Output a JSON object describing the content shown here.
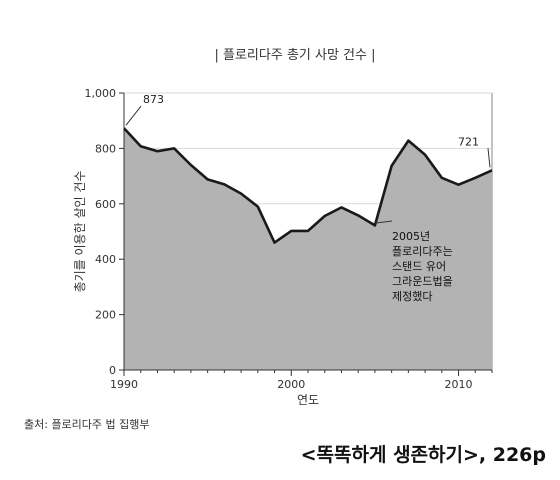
{
  "chart_data": {
    "type": "area",
    "title": "| 플로리다주 총기 사망 건수 |",
    "xlabel": "연도",
    "ylabel": "총기를 이용한 살인 건수",
    "xlim": [
      1990,
      2012
    ],
    "ylim": [
      0,
      1000
    ],
    "x_ticks": [
      "1990",
      "2000",
      "2010"
    ],
    "y_ticks": [
      "0",
      "200",
      "400",
      "600",
      "800",
      "1,000"
    ],
    "grid": "horizontal",
    "x": [
      1990,
      1991,
      1992,
      1993,
      1994,
      1995,
      1996,
      1997,
      1998,
      1999,
      2000,
      2001,
      2002,
      2003,
      2004,
      2005,
      2006,
      2007,
      2008,
      2009,
      2010,
      2011,
      2012
    ],
    "values": [
      873,
      808,
      790,
      800,
      740,
      688,
      670,
      637,
      590,
      460,
      502,
      502,
      556,
      587,
      558,
      522,
      737,
      828,
      777,
      694,
      669,
      694,
      721
    ],
    "point_labels": [
      {
        "x": 1990,
        "text": "873"
      },
      {
        "x": 2012,
        "text": "721"
      }
    ],
    "annotation": {
      "x": 2005,
      "lines": [
        "2005년",
        "플로리다주는",
        "스탠드 유어",
        "그라운드법을",
        "제정했다"
      ]
    },
    "colors": {
      "fill": "#b3b3b3",
      "line": "#1a1a1a",
      "grid": "#d9d9d9"
    }
  },
  "source": "출처: 플로리다주 법 집행부",
  "citation": "<똑똑하게 생존하기>, 226p"
}
